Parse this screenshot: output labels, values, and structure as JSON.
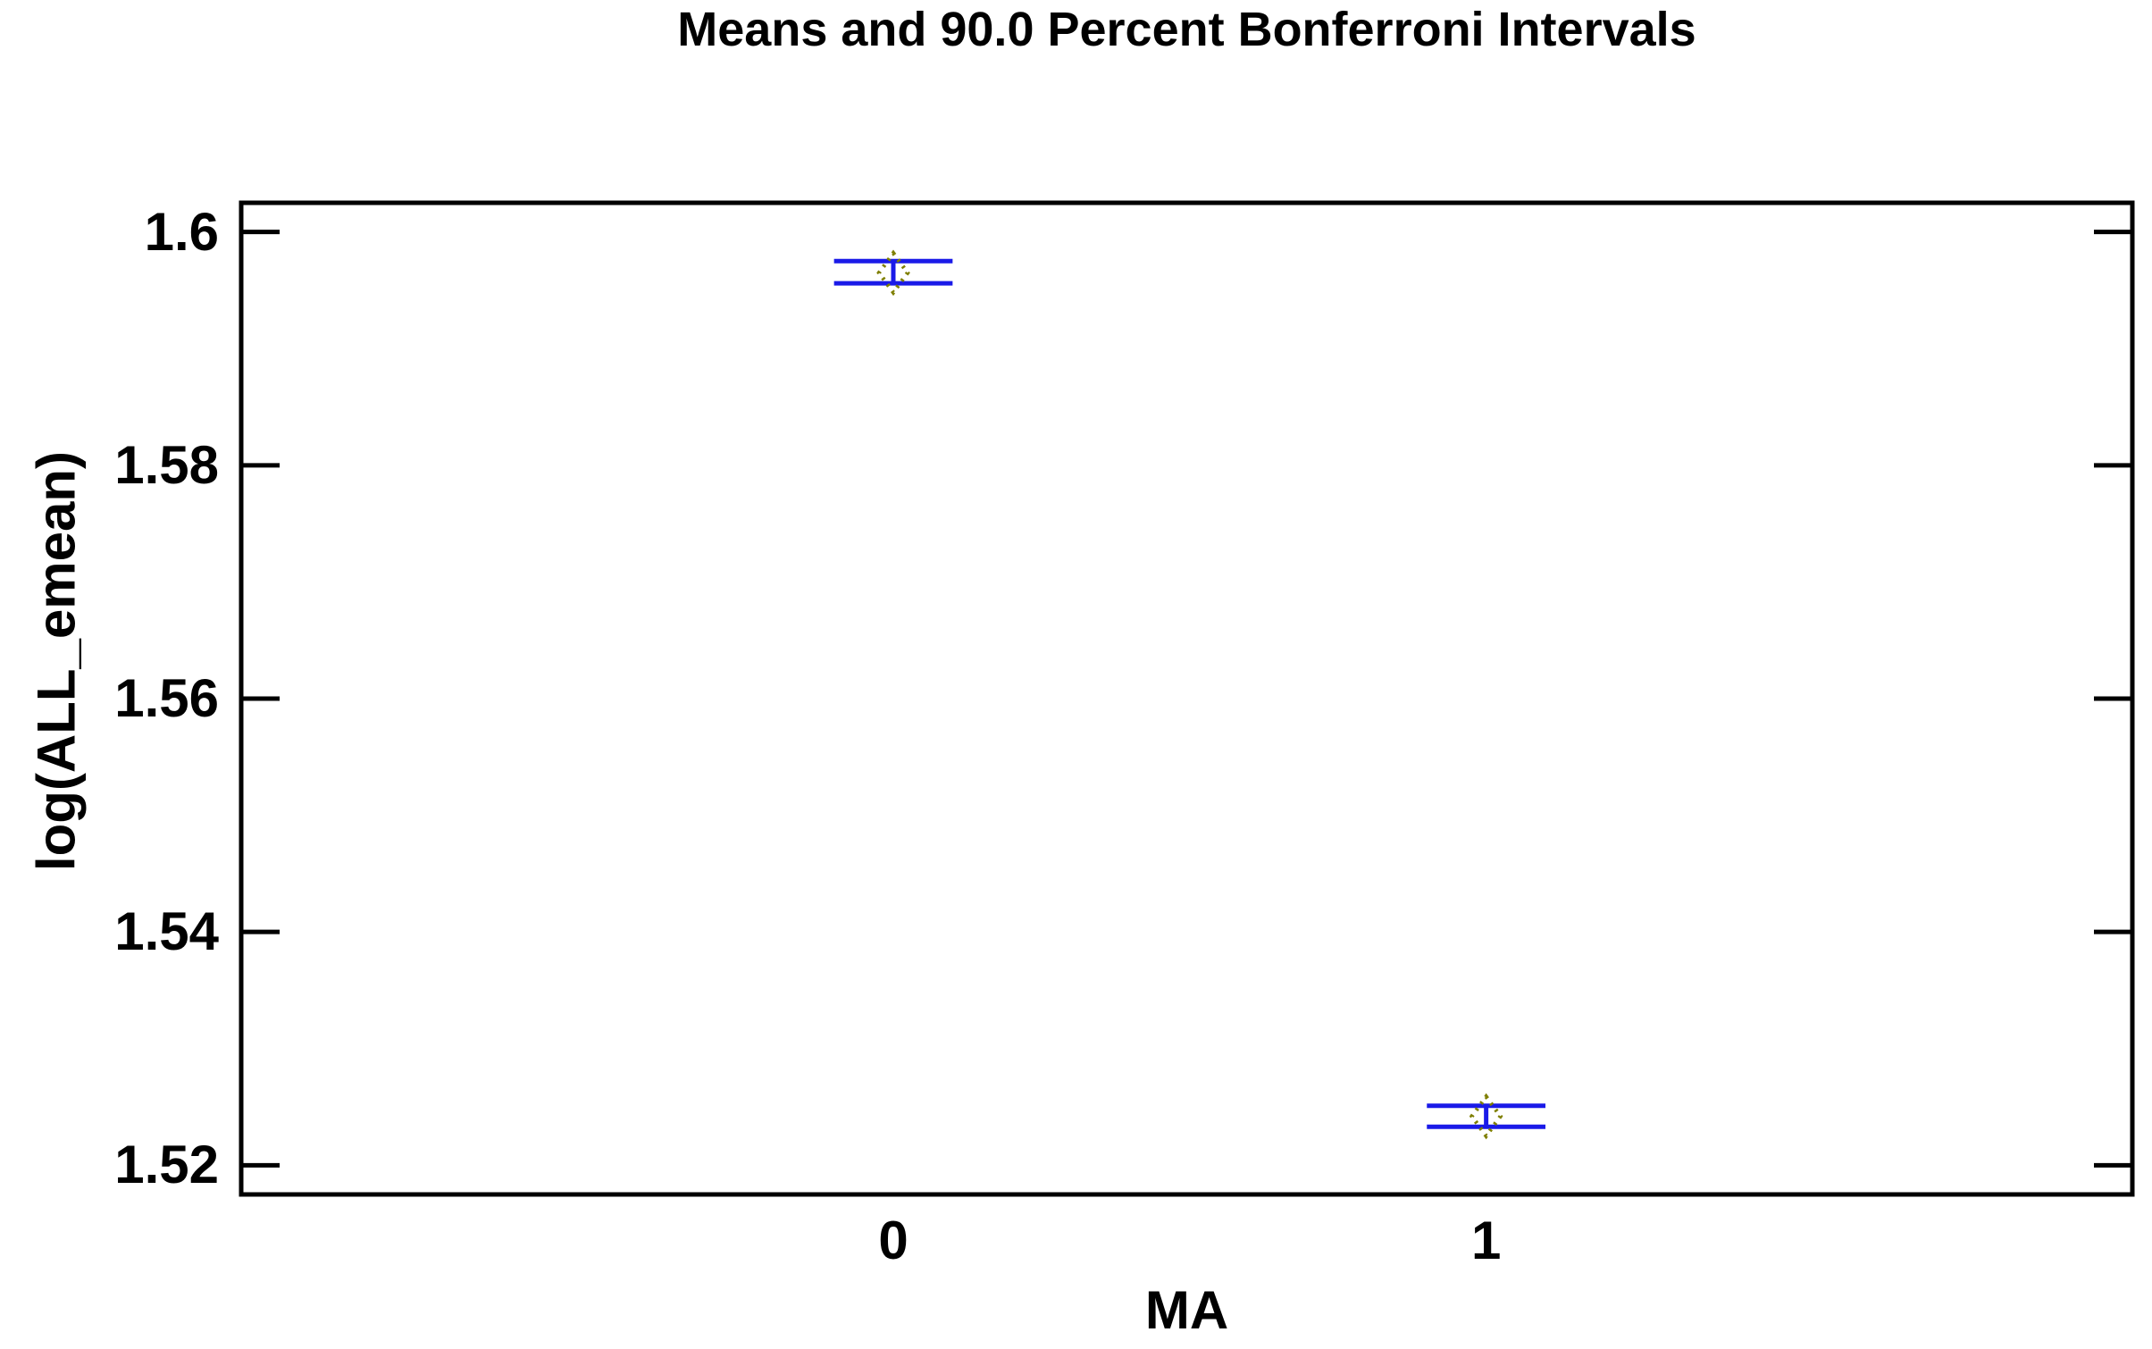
{
  "chart_data": {
    "type": "scatter",
    "subtype": "means-with-error-intervals",
    "title": "Means and 90.0 Percent Bonferroni Intervals",
    "xlabel": "MA",
    "ylabel": "log(ALL_emean)",
    "categories": [
      "0",
      "1"
    ],
    "points": [
      {
        "category": "0",
        "x": 0,
        "mean": 1.5965,
        "lower": 1.5956,
        "upper": 1.5975
      },
      {
        "category": "1",
        "x": 1,
        "mean": 1.5242,
        "lower": 1.5233,
        "upper": 1.5251
      }
    ],
    "interval_cap_halfwidth_x": 0.1,
    "xlim": [
      -1.1,
      2.09
    ],
    "ylim": [
      1.5175,
      1.6025
    ],
    "yticks": [
      1.52,
      1.54,
      1.56,
      1.58,
      1.6
    ],
    "ytick_labels": [
      "1.52",
      "1.54",
      "1.56",
      "1.58",
      "1.6"
    ],
    "grid": false,
    "legend": "none",
    "marker": {
      "shape": "dotted-outline-diamond",
      "color": "#7f7f00"
    },
    "colors": {
      "interval_line": "#1a1ae8",
      "marker": "#7f7f00",
      "axis": "#000000",
      "text": "#000000",
      "background": "#ffffff"
    }
  }
}
